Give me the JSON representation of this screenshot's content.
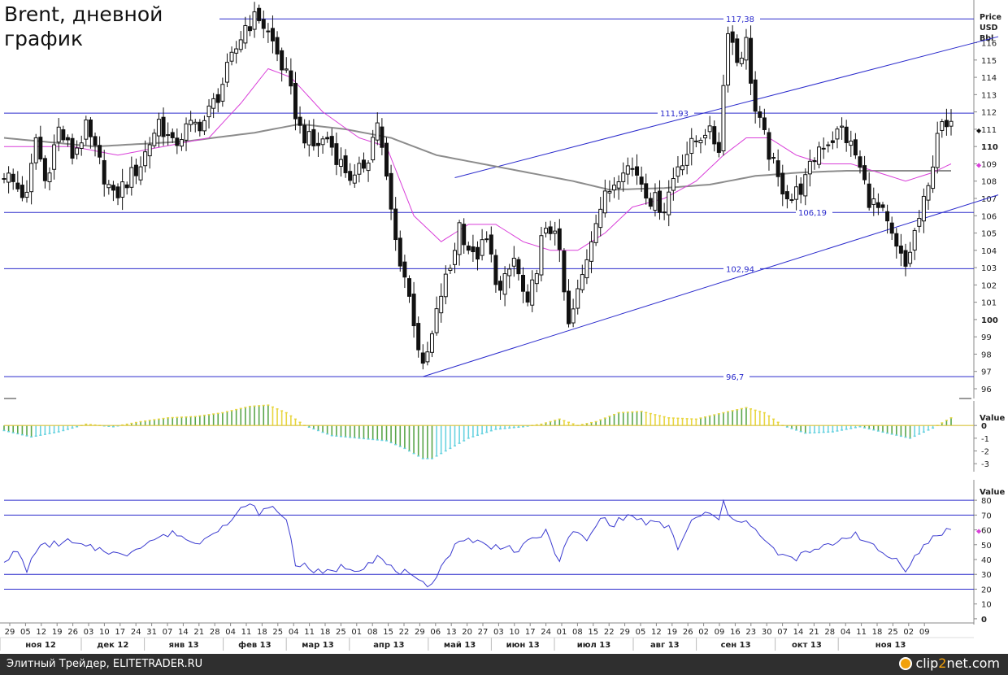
{
  "title": [
    "Brent, дневной",
    "график"
  ],
  "footer": {
    "credit": "Элитный Трейдер, ELITETRADER.RU",
    "logo_main": "clip",
    "logo_accent": "2",
    "logo_rest": "net.com"
  },
  "colors": {
    "candle": "#111111",
    "ma_fast": "#d93fd9",
    "ma_slow": "#8c8c8c",
    "level": "#2b2bcc",
    "hist_pos": "#5aa64a",
    "hist_cyan": "#6ad3e0",
    "hist_yellow": "#e8d640",
    "rsi": "#3b3bd0"
  },
  "chart_data": [
    {
      "type": "candlestick",
      "ylabel": "Price USD Bbl",
      "ylim": [
        96,
        118
      ],
      "y_ticks": [
        96,
        97,
        98,
        99,
        100,
        101,
        102,
        103,
        104,
        105,
        106,
        107,
        108,
        109,
        110,
        111,
        112,
        113,
        114,
        115,
        116
      ],
      "bold_ticks": [
        100,
        110
      ],
      "levels": [
        {
          "value": 117.38,
          "label": "117,38"
        },
        {
          "value": 111.93,
          "label": "111,93"
        },
        {
          "value": 106.19,
          "label": "106,19"
        },
        {
          "value": 102.94,
          "label": "102,94"
        },
        {
          "value": 96.7,
          "label": "96,7"
        }
      ],
      "trendlines": [
        {
          "from": [
            99,
            108.2
          ],
          "to": [
            181,
            113.8
          ]
        },
        {
          "from": [
            92,
            96.7
          ],
          "to": [
            181,
            104.1
          ]
        }
      ],
      "price_marker": 111,
      "ma_marker": 109,
      "ohlc_anchors": [
        [
          0,
          108.5
        ],
        [
          5,
          107.0
        ],
        [
          7,
          110.5
        ],
        [
          9,
          108.0
        ],
        [
          12,
          111.0
        ],
        [
          15,
          109.5
        ],
        [
          18,
          111.0
        ],
        [
          21,
          109.0
        ],
        [
          24,
          107.0
        ],
        [
          27,
          108.0
        ],
        [
          30,
          109.0
        ],
        [
          34,
          111.5
        ],
        [
          37,
          110.0
        ],
        [
          40,
          111.0
        ],
        [
          44,
          111.5
        ],
        [
          47,
          113.0
        ],
        [
          50,
          115.0
        ],
        [
          53,
          117.0
        ],
        [
          56,
          117.5
        ],
        [
          59,
          116.0
        ],
        [
          62,
          114.0
        ],
        [
          65,
          111.0
        ],
        [
          68,
          110.0
        ],
        [
          71,
          110.5
        ],
        [
          74,
          109.0
        ],
        [
          77,
          108.0
        ],
        [
          80,
          109.5
        ],
        [
          82,
          111.5
        ],
        [
          84,
          108.0
        ],
        [
          86,
          104.5
        ],
        [
          88,
          102.5
        ],
        [
          90,
          100.0
        ],
        [
          92,
          97.0
        ],
        [
          94,
          99.0
        ],
        [
          96,
          101.5
        ],
        [
          98,
          103.0
        ],
        [
          100,
          105.5
        ],
        [
          103,
          103.5
        ],
        [
          106,
          104.5
        ],
        [
          109,
          101.5
        ],
        [
          112,
          103.5
        ],
        [
          115,
          100.5
        ],
        [
          118,
          104.5
        ],
        [
          121,
          105.5
        ],
        [
          124,
          99.5
        ],
        [
          127,
          102.5
        ],
        [
          130,
          106.0
        ],
        [
          133,
          107.5
        ],
        [
          136,
          109.0
        ],
        [
          139,
          108.5
        ],
        [
          142,
          107.0
        ],
        [
          145,
          106.5
        ],
        [
          148,
          109.0
        ],
        [
          151,
          110.0
        ],
        [
          154,
          111.0
        ],
        [
          157,
          110.0
        ],
        [
          159,
          117.0
        ],
        [
          161,
          115.0
        ],
        [
          163,
          116.0
        ],
        [
          165,
          112.0
        ],
        [
          167,
          110.5
        ],
        [
          170,
          108.0
        ],
        [
          173,
          107.0
        ],
        [
          176,
          108.0
        ],
        [
          179,
          110.0
        ],
        [
          182,
          110.5
        ],
        [
          184,
          111.0
        ],
        [
          187,
          109.5
        ],
        [
          190,
          107.0
        ],
        [
          193,
          106.0
        ],
        [
          196,
          104.0
        ],
        [
          198,
          103.0
        ],
        [
          200,
          105.0
        ],
        [
          203,
          107.5
        ],
        [
          205,
          111.0
        ],
        [
          208,
          111.0
        ]
      ],
      "ma_fast_anchors": [
        [
          0,
          110.0
        ],
        [
          15,
          110.0
        ],
        [
          25,
          109.5
        ],
        [
          35,
          110.0
        ],
        [
          45,
          110.5
        ],
        [
          52,
          112.5
        ],
        [
          58,
          114.5
        ],
        [
          63,
          114.0
        ],
        [
          70,
          112.0
        ],
        [
          78,
          110.5
        ],
        [
          84,
          110.0
        ],
        [
          90,
          106.0
        ],
        [
          96,
          104.5
        ],
        [
          102,
          105.5
        ],
        [
          108,
          105.5
        ],
        [
          114,
          104.5
        ],
        [
          120,
          104.0
        ],
        [
          126,
          104.0
        ],
        [
          132,
          105.0
        ],
        [
          138,
          106.5
        ],
        [
          145,
          107.0
        ],
        [
          152,
          108.0
        ],
        [
          158,
          109.5
        ],
        [
          163,
          110.5
        ],
        [
          168,
          110.5
        ],
        [
          174,
          109.5
        ],
        [
          180,
          109.0
        ],
        [
          186,
          109.0
        ],
        [
          192,
          108.5
        ],
        [
          198,
          108.0
        ],
        [
          204,
          108.5
        ],
        [
          208,
          109.0
        ]
      ],
      "ma_slow_anchors": [
        [
          0,
          110.5
        ],
        [
          20,
          110.0
        ],
        [
          40,
          110.3
        ],
        [
          55,
          110.8
        ],
        [
          65,
          111.3
        ],
        [
          75,
          111.0
        ],
        [
          85,
          110.5
        ],
        [
          95,
          109.5
        ],
        [
          105,
          109.0
        ],
        [
          115,
          108.5
        ],
        [
          125,
          108.0
        ],
        [
          133,
          107.5
        ],
        [
          145,
          107.6
        ],
        [
          155,
          107.8
        ],
        [
          165,
          108.3
        ],
        [
          175,
          108.5
        ],
        [
          185,
          108.6
        ],
        [
          195,
          108.6
        ],
        [
          205,
          108.6
        ],
        [
          208,
          108.6
        ]
      ]
    },
    {
      "type": "bar",
      "ylabel": "Value",
      "ylim": [
        -3.5,
        1.8
      ],
      "y_ticks": [
        0,
        -1,
        -2,
        -3
      ],
      "y_tick_labels": [
        "0",
        "-1",
        "-2",
        "-3"
      ],
      "value_anchors": [
        [
          0,
          -0.4
        ],
        [
          6,
          -0.9
        ],
        [
          12,
          -0.5
        ],
        [
          18,
          0.1
        ],
        [
          24,
          -0.1
        ],
        [
          30,
          0.3
        ],
        [
          36,
          0.6
        ],
        [
          42,
          0.7
        ],
        [
          48,
          1.0
        ],
        [
          54,
          1.5
        ],
        [
          58,
          1.6
        ],
        [
          62,
          1.0
        ],
        [
          66,
          0.0
        ],
        [
          72,
          -0.8
        ],
        [
          78,
          -1.0
        ],
        [
          84,
          -1.2
        ],
        [
          88,
          -1.8
        ],
        [
          92,
          -2.6
        ],
        [
          94,
          -2.6
        ],
        [
          98,
          -1.8
        ],
        [
          102,
          -1.0
        ],
        [
          108,
          -0.3
        ],
        [
          114,
          -0.1
        ],
        [
          118,
          0.1
        ],
        [
          122,
          0.5
        ],
        [
          126,
          0.0
        ],
        [
          130,
          0.3
        ],
        [
          135,
          1.0
        ],
        [
          140,
          1.1
        ],
        [
          146,
          0.6
        ],
        [
          152,
          0.5
        ],
        [
          158,
          1.0
        ],
        [
          163,
          1.4
        ],
        [
          167,
          1.0
        ],
        [
          171,
          0.0
        ],
        [
          176,
          -0.6
        ],
        [
          182,
          -0.5
        ],
        [
          188,
          -0.1
        ],
        [
          194,
          -0.6
        ],
        [
          199,
          -1.0
        ],
        [
          204,
          -0.2
        ],
        [
          208,
          0.6
        ]
      ]
    },
    {
      "type": "line",
      "ylabel": "Value",
      "ylim": [
        -5,
        85
      ],
      "y_ticks": [
        80,
        70,
        60,
        50,
        40,
        30,
        20,
        10,
        0
      ],
      "levels": [
        80,
        70,
        30,
        20
      ],
      "marker": 60,
      "value_anchors": [
        [
          0,
          40
        ],
        [
          3,
          45
        ],
        [
          5,
          32
        ],
        [
          7,
          47
        ],
        [
          10,
          50
        ],
        [
          14,
          52
        ],
        [
          18,
          48
        ],
        [
          22,
          47
        ],
        [
          26,
          42
        ],
        [
          30,
          50
        ],
        [
          34,
          55
        ],
        [
          38,
          58
        ],
        [
          42,
          50
        ],
        [
          46,
          60
        ],
        [
          50,
          65
        ],
        [
          53,
          78
        ],
        [
          56,
          72
        ],
        [
          59,
          75
        ],
        [
          62,
          68
        ],
        [
          64,
          38
        ],
        [
          67,
          34
        ],
        [
          70,
          30
        ],
        [
          74,
          35
        ],
        [
          78,
          34
        ],
        [
          82,
          42
        ],
        [
          85,
          34
        ],
        [
          88,
          31
        ],
        [
          91,
          24
        ],
        [
          93,
          22
        ],
        [
          95,
          30
        ],
        [
          98,
          45
        ],
        [
          101,
          55
        ],
        [
          104,
          52
        ],
        [
          107,
          48
        ],
        [
          110,
          50
        ],
        [
          113,
          45
        ],
        [
          116,
          54
        ],
        [
          119,
          58
        ],
        [
          122,
          40
        ],
        [
          125,
          60
        ],
        [
          128,
          52
        ],
        [
          131,
          68
        ],
        [
          134,
          64
        ],
        [
          137,
          70
        ],
        [
          140,
          66
        ],
        [
          143,
          64
        ],
        [
          146,
          62
        ],
        [
          148,
          48
        ],
        [
          151,
          65
        ],
        [
          154,
          72
        ],
        [
          157,
          66
        ],
        [
          158,
          79
        ],
        [
          160,
          65
        ],
        [
          163,
          68
        ],
        [
          165,
          60
        ],
        [
          167,
          52
        ],
        [
          170,
          44
        ],
        [
          173,
          40
        ],
        [
          176,
          44
        ],
        [
          180,
          48
        ],
        [
          184,
          54
        ],
        [
          187,
          58
        ],
        [
          190,
          50
        ],
        [
          193,
          44
        ],
        [
          196,
          40
        ],
        [
          198,
          34
        ],
        [
          201,
          45
        ],
        [
          204,
          55
        ],
        [
          207,
          60
        ],
        [
          208,
          61
        ]
      ]
    }
  ],
  "x_axis": {
    "days": [
      "29",
      "05",
      "12",
      "19",
      "26",
      "03",
      "10",
      "17",
      "24",
      "31",
      "07",
      "14",
      "21",
      "28",
      "04",
      "11",
      "18",
      "25",
      "04",
      "11",
      "18",
      "25",
      "01",
      "08",
      "15",
      "22",
      "29",
      "06",
      "13",
      "20",
      "27",
      "03",
      "10",
      "17",
      "24",
      "01",
      "08",
      "15",
      "22",
      "29",
      "05",
      "12",
      "19",
      "26",
      "02",
      "09",
      "16",
      "23",
      "30",
      "07",
      "14",
      "21",
      "28",
      "04",
      "11",
      "18",
      "25",
      "02",
      "09"
    ],
    "months": [
      "ноя 12",
      "дек 12",
      "янв 13",
      "фев 13",
      "мар 13",
      "апр 13",
      "май 13",
      "июн 13",
      "июл 13",
      "авг 13",
      "сен 13",
      "окт 13",
      "ноя 13"
    ],
    "month_start_week": [
      1,
      5,
      9,
      14,
      18,
      22,
      27,
      31,
      35,
      40,
      44,
      49,
      53
    ]
  },
  "panels": {
    "price_axis_title": [
      "Price",
      "USD",
      "Bbl"
    ],
    "macd_axis_title": "Value",
    "rsi_axis_title": "Value"
  }
}
